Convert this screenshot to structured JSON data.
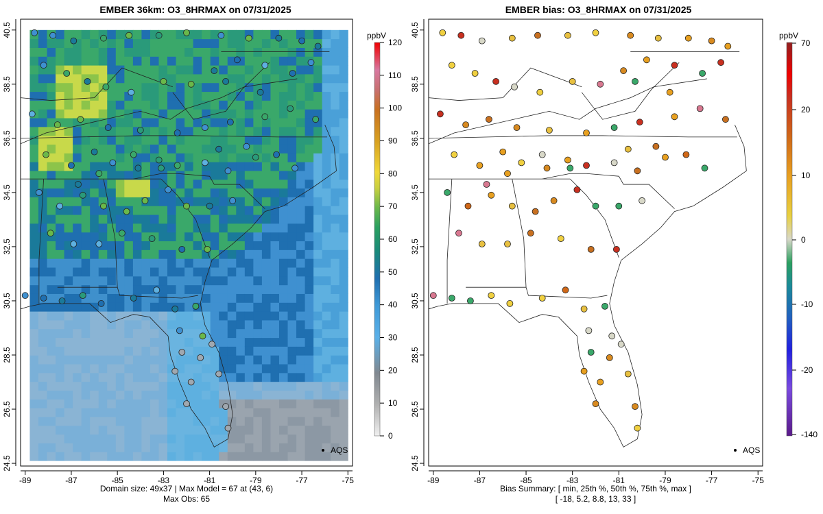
{
  "left_panel": {
    "title": "EMBER 36km: O3_8HRMAX on 07/31/2025",
    "colorbar": {
      "unit": "ppbV",
      "ticks": [
        0,
        10,
        20,
        30,
        40,
        50,
        60,
        70,
        80,
        90,
        100,
        110,
        120
      ],
      "range": [
        0,
        120
      ]
    },
    "caption_line1": "Domain size: 49x37 | Max Model = 67 at (43, 6)",
    "caption_line2": "Max Obs: 65",
    "legend_label": "AQS"
  },
  "right_panel": {
    "title": "EMBER bias: O3_8HRMAX on 07/31/2025",
    "colorbar": {
      "unit": "ppbV",
      "ticks": [
        -140,
        -20,
        -10,
        0,
        10,
        20,
        70
      ]
    },
    "caption_line1": "Bias Summary: [ min, 25th %, 50th %, 75th %, max ]",
    "caption_line2": "[ -18,   5.2,   8.8,   13,   33 ]",
    "legend_label": "AQS"
  },
  "axes": {
    "x_ticks": [
      "-89",
      "-87",
      "-85",
      "-83",
      "-81",
      "-79",
      "-77",
      "-75"
    ],
    "y_ticks": [
      "24.5",
      "26.5",
      "28.5",
      "30.5",
      "32.5",
      "34.5",
      "36.5",
      "38.5",
      "40.5"
    ],
    "lon_range": [
      -89.2,
      -74.8
    ],
    "lat_range": [
      24.4,
      40.9
    ]
  },
  "colors": {
    "land_high": "#c8d94a",
    "land_mid": "#3aa86a",
    "land_low": "#1f6fb0",
    "ocean": "#5eb0e0",
    "gulf": "#9ab0c4",
    "bias_pos": "#e8a020",
    "bias_high": "#c73a2a",
    "bias_neg": "#3aa86a"
  }
}
